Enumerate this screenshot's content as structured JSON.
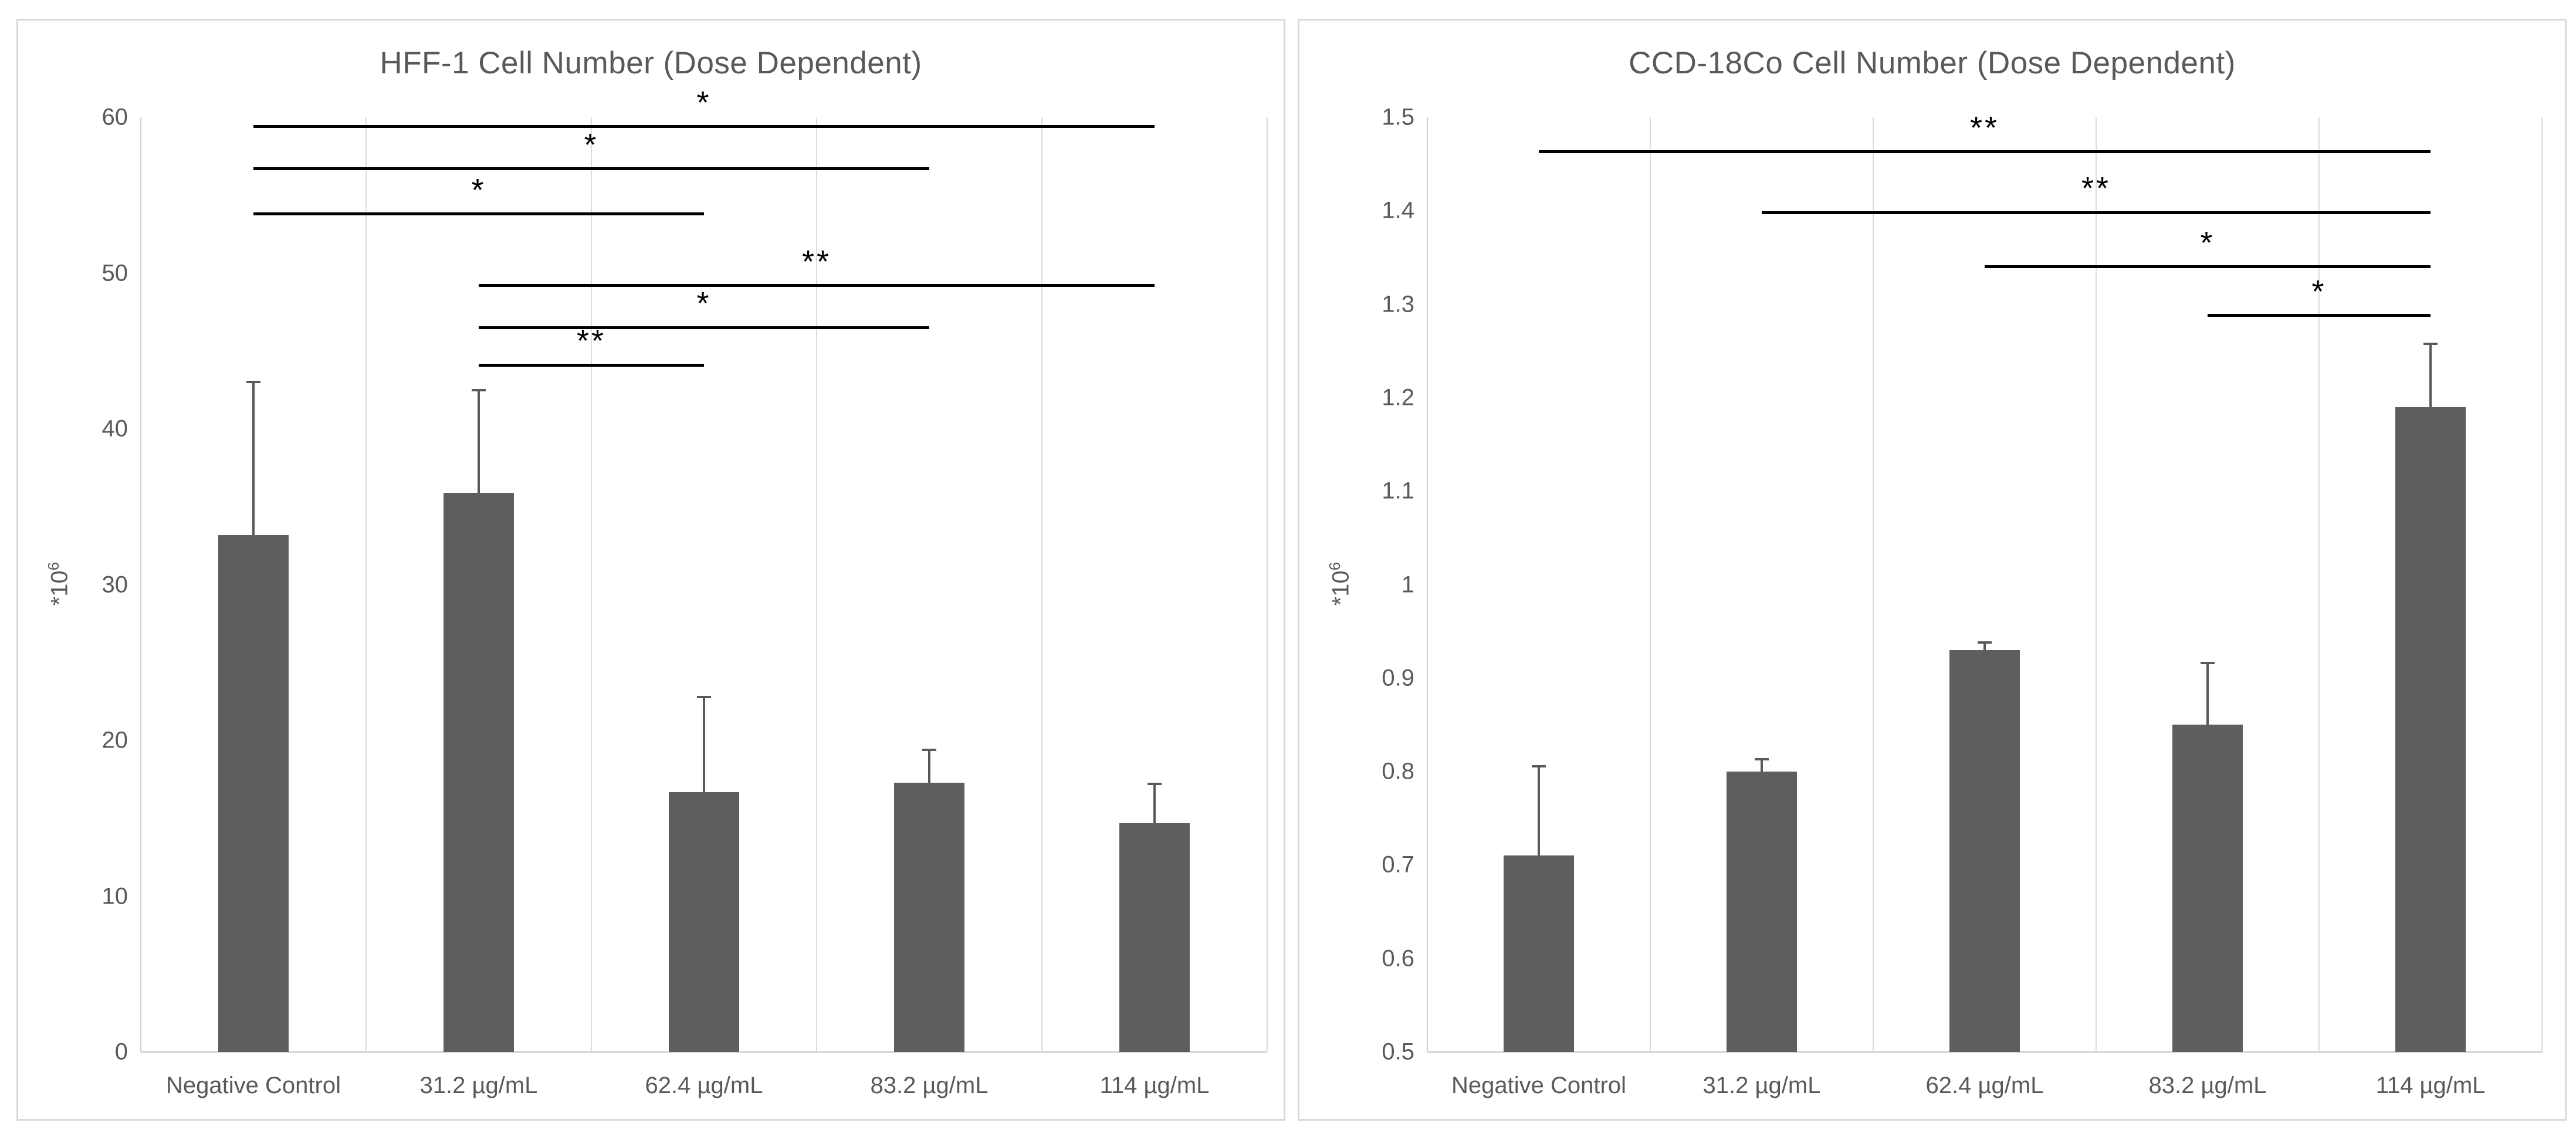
{
  "chart_data": [
    {
      "type": "bar",
      "title": "HFF-1 Cell Number (Dose Dependent)",
      "y_label": {
        "text": "*10",
        "superscript": "6"
      },
      "xlabel": "",
      "categories": [
        "Negative Control",
        "31.2 µg/mL",
        "62.4 µg/mL",
        "83.2 µg/mL",
        "114 µg/mL"
      ],
      "values": [
        33.2,
        35.9,
        16.7,
        17.3,
        14.7
      ],
      "error_top": [
        43.0,
        42.5,
        22.8,
        19.4,
        17.2
      ],
      "ylim": [
        0,
        60
      ],
      "yticks": [
        {
          "value": 60,
          "label": "60"
        },
        {
          "value": 50,
          "label": "50"
        },
        {
          "value": 40,
          "label": "40"
        },
        {
          "value": 30,
          "label": "30"
        },
        {
          "value": 20,
          "label": "20"
        },
        {
          "value": 10,
          "label": "10"
        },
        {
          "value": 0,
          "label": "0"
        }
      ],
      "grid": "vertical-category-separators",
      "legend": "none",
      "significance_brackets": [
        {
          "from_category": 0,
          "to_category": 4,
          "label": "*",
          "y": 59.4
        },
        {
          "from_category": 0,
          "to_category": 3,
          "label": "*",
          "y": 56.7
        },
        {
          "from_category": 0,
          "to_category": 2,
          "label": "*",
          "y": 53.8
        },
        {
          "from_category": 1,
          "to_category": 4,
          "label": "**",
          "y": 49.2
        },
        {
          "from_category": 1,
          "to_category": 3,
          "label": "*",
          "y": 46.5
        },
        {
          "from_category": 1,
          "to_category": 2,
          "label": "**",
          "y": 44.1
        }
      ]
    },
    {
      "type": "bar",
      "title": "CCD-18Co Cell Number (Dose Dependent)",
      "y_label": {
        "text": "*10",
        "superscript": "6"
      },
      "xlabel": "",
      "categories": [
        "Negative Control",
        "31.2 µg/mL",
        "62.4 µg/mL",
        "83.2 µg/mL",
        "114 µg/mL"
      ],
      "values": [
        0.71,
        0.8,
        0.93,
        0.85,
        1.19
      ],
      "error_top": [
        0.806,
        0.813,
        0.938,
        0.916,
        1.258
      ],
      "ylim": [
        0.5,
        1.5
      ],
      "yticks": [
        {
          "value": 1.5,
          "label": "1.5"
        },
        {
          "value": 1.4,
          "label": "1.4"
        },
        {
          "value": 1.3,
          "label": "1.3"
        },
        {
          "value": 1.2,
          "label": "1.2"
        },
        {
          "value": 1.1,
          "label": "1.1"
        },
        {
          "value": 1.0,
          "label": "1"
        },
        {
          "value": 0.9,
          "label": "0.9"
        },
        {
          "value": 0.8,
          "label": "0.8"
        },
        {
          "value": 0.7,
          "label": "0.7"
        },
        {
          "value": 0.6,
          "label": "0.6"
        },
        {
          "value": 0.5,
          "label": "0.5"
        }
      ],
      "grid": "vertical-category-separators",
      "legend": "none",
      "significance_brackets": [
        {
          "from_category": 0,
          "to_category": 4,
          "label": "**",
          "y": 1.463
        },
        {
          "from_category": 1,
          "to_category": 4,
          "label": "**",
          "y": 1.398
        },
        {
          "from_category": 2,
          "to_category": 4,
          "label": "*",
          "y": 1.34
        },
        {
          "from_category": 3,
          "to_category": 4,
          "label": "*",
          "y": 1.288
        }
      ]
    }
  ],
  "colors": {
    "text": "#595959",
    "bar": "#5e5e5e",
    "error_bar": "#595959",
    "gridline": "#dcdcdc",
    "axis_line": "#cfcfcf",
    "baseline": "#d9d9d9",
    "significance": "#000000",
    "panel_border": "#d9d9d9",
    "background": "#ffffff"
  }
}
